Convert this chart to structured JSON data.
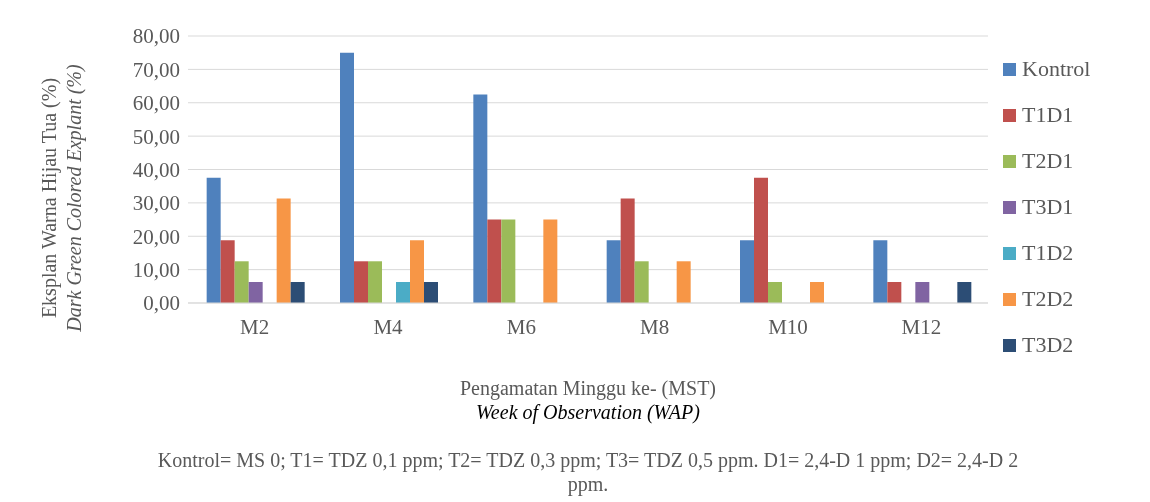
{
  "chart_data": {
    "type": "bar",
    "ylabel": "Eksplan Warna Hijau Tua (%)\nDark Green Colored Explant (%)",
    "xlabel": "Pengamatan Minggu ke- (MST)\nWeek of Observation (WAP)",
    "annotations": [
      "Kontrol= MS 0; T1= TDZ 0,1 ppm; T2= TDZ 0,3 ppm; T3= TDZ 0,5 ppm. D1= 2,4-D 1 ppm; D2= 2,4-D 2 ppm."
    ],
    "categories": [
      "M2",
      "M4",
      "M6",
      "M8",
      "M10",
      "M12"
    ],
    "series": [
      {
        "name": "Kontrol",
        "color": "#4f81bd",
        "values": [
          37.5,
          75,
          62.5,
          18.8,
          18.8,
          18.8
        ]
      },
      {
        "name": "T1D1",
        "color": "#c0504d",
        "values": [
          18.8,
          12.5,
          25,
          31.3,
          37.5,
          6.3
        ]
      },
      {
        "name": "T2D1",
        "color": "#9bbb59",
        "values": [
          12.5,
          12.5,
          25,
          12.5,
          6.3,
          0
        ]
      },
      {
        "name": "T3D1",
        "color": "#8064a2",
        "values": [
          6.3,
          0,
          0,
          0,
          0,
          6.3
        ]
      },
      {
        "name": "T1D2",
        "color": "#4bacc6",
        "values": [
          0,
          6.3,
          0,
          0,
          0,
          0
        ]
      },
      {
        "name": "T2D2",
        "color": "#f79646",
        "values": [
          31.3,
          18.8,
          25,
          12.5,
          6.3,
          0
        ]
      },
      {
        "name": "T3D2",
        "color": "#2c4d75",
        "values": [
          6.3,
          6.3,
          0,
          0,
          0,
          6.3
        ]
      }
    ],
    "ylim": [
      0,
      80
    ],
    "yticks": [
      {
        "value": 0,
        "label": "0,00"
      },
      {
        "value": 10,
        "label": "10,00"
      },
      {
        "value": 20,
        "label": "20,00"
      },
      {
        "value": 30,
        "label": "30,00"
      },
      {
        "value": 40,
        "label": "40,00"
      },
      {
        "value": 50,
        "label": "50,00"
      },
      {
        "value": 60,
        "label": "60,00"
      },
      {
        "value": 70,
        "label": "70,00"
      },
      {
        "value": 80,
        "label": "80,00"
      }
    ],
    "grid": "y",
    "legend": "right"
  }
}
